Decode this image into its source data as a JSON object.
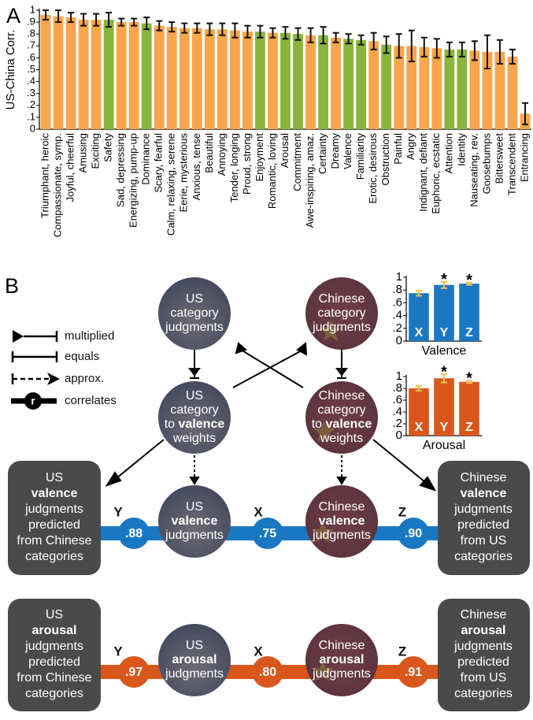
{
  "panel_labels": [
    "A",
    "B"
  ],
  "chart_data": [
    {
      "type": "bar",
      "ylabel": "US-China Corr.",
      "categories": [
        "Triumphant, heroic",
        "Compassionate, symp.",
        "Joyful, cheerful",
        "Amusing",
        "Exciting",
        "Safety",
        "Sad, depressing",
        "Energizing, pump-up",
        "Dominance",
        "Scary, fearful",
        "Calm, relaxing, serene",
        "Eerie, mysterious",
        "Anxious, tense",
        "Beautiful",
        "Annoying",
        "Tender, longing",
        "Proud, strong",
        "Enjoyment",
        "Romantic, loving",
        "Arousal",
        "Commitment",
        "Awe-inspiring, amaz.",
        "Certainty",
        "Dreamy",
        "Valence",
        "Familiarity",
        "Erotic, desirous",
        "Obstruction",
        "Painful",
        "Angry",
        "Indignant, defiant",
        "Euphoric, ecstatic",
        "Attention",
        "Identity",
        "Nauseating, rev.",
        "Goosebumps",
        "Bittersweet",
        "Transcendent",
        "Entrancing"
      ],
      "values": [
        0.96,
        0.95,
        0.94,
        0.92,
        0.92,
        0.92,
        0.9,
        0.9,
        0.89,
        0.87,
        0.86,
        0.85,
        0.85,
        0.84,
        0.84,
        0.83,
        0.82,
        0.82,
        0.81,
        0.81,
        0.8,
        0.79,
        0.79,
        0.77,
        0.76,
        0.75,
        0.74,
        0.71,
        0.7,
        0.7,
        0.69,
        0.68,
        0.67,
        0.67,
        0.66,
        0.65,
        0.65,
        0.61,
        0.13
      ],
      "errors": [
        0.04,
        0.05,
        0.04,
        0.05,
        0.05,
        0.06,
        0.03,
        0.03,
        0.05,
        0.04,
        0.04,
        0.04,
        0.04,
        0.05,
        0.05,
        0.06,
        0.05,
        0.05,
        0.04,
        0.05,
        0.05,
        0.06,
        0.07,
        0.04,
        0.04,
        0.04,
        0.07,
        0.07,
        0.1,
        0.13,
        0.08,
        0.08,
        0.06,
        0.06,
        0.08,
        0.14,
        0.1,
        0.06,
        0.09
      ],
      "colors": [
        "#f9a54b",
        "#f9a54b",
        "#f9a54b",
        "#f9a54b",
        "#f9a54b",
        "#8bb43c",
        "#f9a54b",
        "#f9a54b",
        "#8bb43c",
        "#f9a54b",
        "#f9a54b",
        "#f9a54b",
        "#f9a54b",
        "#f9a54b",
        "#f9a54b",
        "#f9a54b",
        "#f9a54b",
        "#8bb43c",
        "#f9a54b",
        "#8bb43c",
        "#8bb43c",
        "#f9a54b",
        "#8bb43c",
        "#f9a54b",
        "#8bb43c",
        "#8bb43c",
        "#f9a54b",
        "#8bb43c",
        "#f9a54b",
        "#f9a54b",
        "#f9a54b",
        "#f9a54b",
        "#8bb43c",
        "#8bb43c",
        "#f9a54b",
        "#f9a54b",
        "#f9a54b",
        "#f9a54b",
        "#f9a54b"
      ],
      "error_color": "#111111",
      "ylim": [
        0,
        1
      ],
      "yticks": [
        0,
        {
          "value": 0.1,
          "label": ".1"
        },
        {
          "value": 0.2,
          "label": ".2"
        },
        {
          "value": 0.3,
          "label": ".3"
        },
        {
          "value": 0.4,
          "label": ".4"
        },
        {
          "value": 0.5,
          "label": ".5"
        },
        {
          "value": 0.6,
          "label": ".6"
        },
        {
          "value": 0.7,
          "label": ".7"
        },
        {
          "value": 0.8,
          "label": ".8"
        },
        {
          "value": 0.9,
          "label": ".9"
        },
        1
      ]
    },
    {
      "type": "bar",
      "xlabel": "Valence",
      "categories": [
        "X",
        "Y",
        "Z"
      ],
      "values": [
        0.75,
        0.88,
        0.9
      ],
      "value_labels": [
        ".75",
        ".88",
        ".90"
      ],
      "errors": [
        0.04,
        0.05,
        0.02
      ],
      "color": "#1a78c2",
      "error_color": "#f2c14e",
      "annotations": [
        {
          "x": "Y",
          "text": "*"
        },
        {
          "x": "Z",
          "text": "*"
        }
      ],
      "ylim": [
        0,
        1
      ],
      "yticks": [
        0,
        {
          "value": 0.2,
          "label": ".2"
        },
        {
          "value": 0.4,
          "label": ".4"
        },
        {
          "value": 0.6,
          "label": ".6"
        },
        {
          "value": 0.8,
          "label": ".8"
        },
        1
      ]
    },
    {
      "type": "bar",
      "xlabel": "Arousal",
      "categories": [
        "X",
        "Y",
        "Z"
      ],
      "values": [
        0.8,
        0.97,
        0.91
      ],
      "value_labels": [
        ".80",
        ".97",
        ".91"
      ],
      "errors": [
        0.04,
        0.07,
        0.02
      ],
      "color": "#d9571c",
      "error_color": "#f2c14e",
      "annotations": [
        {
          "x": "Y",
          "text": "*"
        },
        {
          "x": "Z",
          "text": "*"
        }
      ],
      "ylim": [
        0,
        1
      ],
      "yticks": [
        0,
        {
          "value": 0.2,
          "label": ".2"
        },
        {
          "value": 0.4,
          "label": ".4"
        },
        {
          "value": 0.6,
          "label": ".6"
        },
        {
          "value": 0.8,
          "label": ".8"
        },
        1
      ]
    }
  ],
  "diagram": {
    "legend": [
      "multiplied",
      "equals",
      "approx.",
      "correlates"
    ],
    "legend_symbol": "r",
    "nodes": [
      [
        "US",
        "category",
        "judgments"
      ],
      [
        "Chinese",
        "category",
        "judgments"
      ],
      [
        "US",
        "category",
        "to",
        "valence",
        "weights"
      ],
      [
        "Chinese",
        "category",
        "to",
        "valence",
        "weights"
      ],
      [
        "US",
        "valence",
        "judgments"
      ],
      [
        "Chinese",
        "valence",
        "judgments"
      ],
      [
        "US",
        "arousal",
        "judgments"
      ],
      [
        "Chinese",
        "arousal",
        "judgments"
      ]
    ],
    "boxes": [
      [
        "US",
        "valence",
        "judgments",
        "predicted",
        "from Chinese",
        "categories"
      ],
      [
        "Chinese",
        "valence",
        "judgments",
        "predicted",
        "from US",
        "categories"
      ],
      [
        "US",
        "arousal",
        "judgments",
        "predicted",
        "from Chinese",
        "categories"
      ],
      [
        "Chinese",
        "arousal",
        "judgments",
        "predicted",
        "from US",
        "categories"
      ]
    ]
  }
}
